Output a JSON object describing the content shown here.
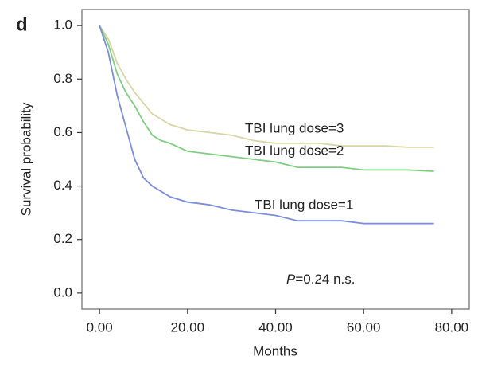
{
  "chart_data": {
    "type": "line",
    "panel": "d",
    "y_label": "Survival probability",
    "x_label": "Months",
    "annotation": {
      "italic": "P",
      "text": "=0.24 n.s."
    },
    "xlim": [
      -4,
      84
    ],
    "ylim": [
      -0.06,
      1.06
    ],
    "xticks": [
      {
        "value": 0,
        "label": "0.00"
      },
      {
        "value": 20,
        "label": "20.00"
      },
      {
        "value": 40,
        "label": "40.00"
      },
      {
        "value": 60,
        "label": "60.00"
      },
      {
        "value": 80,
        "label": "80.00"
      }
    ],
    "yticks": [
      {
        "value": 0,
        "label": "0.0"
      },
      {
        "value": 0.2,
        "label": "0.2"
      },
      {
        "value": 0.4,
        "label": "0.4"
      },
      {
        "value": 0.6,
        "label": "0.6"
      },
      {
        "value": 0.8,
        "label": "0.8"
      },
      {
        "value": 1,
        "label": "1.0"
      }
    ],
    "x": [
      0,
      2,
      4,
      6,
      8,
      10,
      12,
      14,
      16,
      20,
      25,
      30,
      35,
      40,
      45,
      50,
      55,
      60,
      65,
      70,
      76
    ],
    "series": [
      {
        "name": "TBI lung dose=3",
        "color": "#d6d6a6",
        "values": [
          1.0,
          0.95,
          0.86,
          0.8,
          0.75,
          0.71,
          0.67,
          0.65,
          0.63,
          0.61,
          0.6,
          0.59,
          0.57,
          0.56,
          0.56,
          0.56,
          0.55,
          0.55,
          0.55,
          0.545,
          0.545
        ]
      },
      {
        "name": "TBI lung dose=2",
        "color": "#7fcf82",
        "values": [
          1.0,
          0.93,
          0.82,
          0.75,
          0.7,
          0.64,
          0.59,
          0.57,
          0.56,
          0.53,
          0.52,
          0.51,
          0.5,
          0.49,
          0.47,
          0.47,
          0.47,
          0.46,
          0.46,
          0.46,
          0.455
        ]
      },
      {
        "name": "TBI lung dose=1",
        "color": "#7b8edb",
        "values": [
          1.0,
          0.9,
          0.74,
          0.62,
          0.5,
          0.43,
          0.4,
          0.38,
          0.36,
          0.34,
          0.33,
          0.31,
          0.3,
          0.29,
          0.27,
          0.27,
          0.27,
          0.26,
          0.26,
          0.26,
          0.26
        ]
      }
    ]
  }
}
